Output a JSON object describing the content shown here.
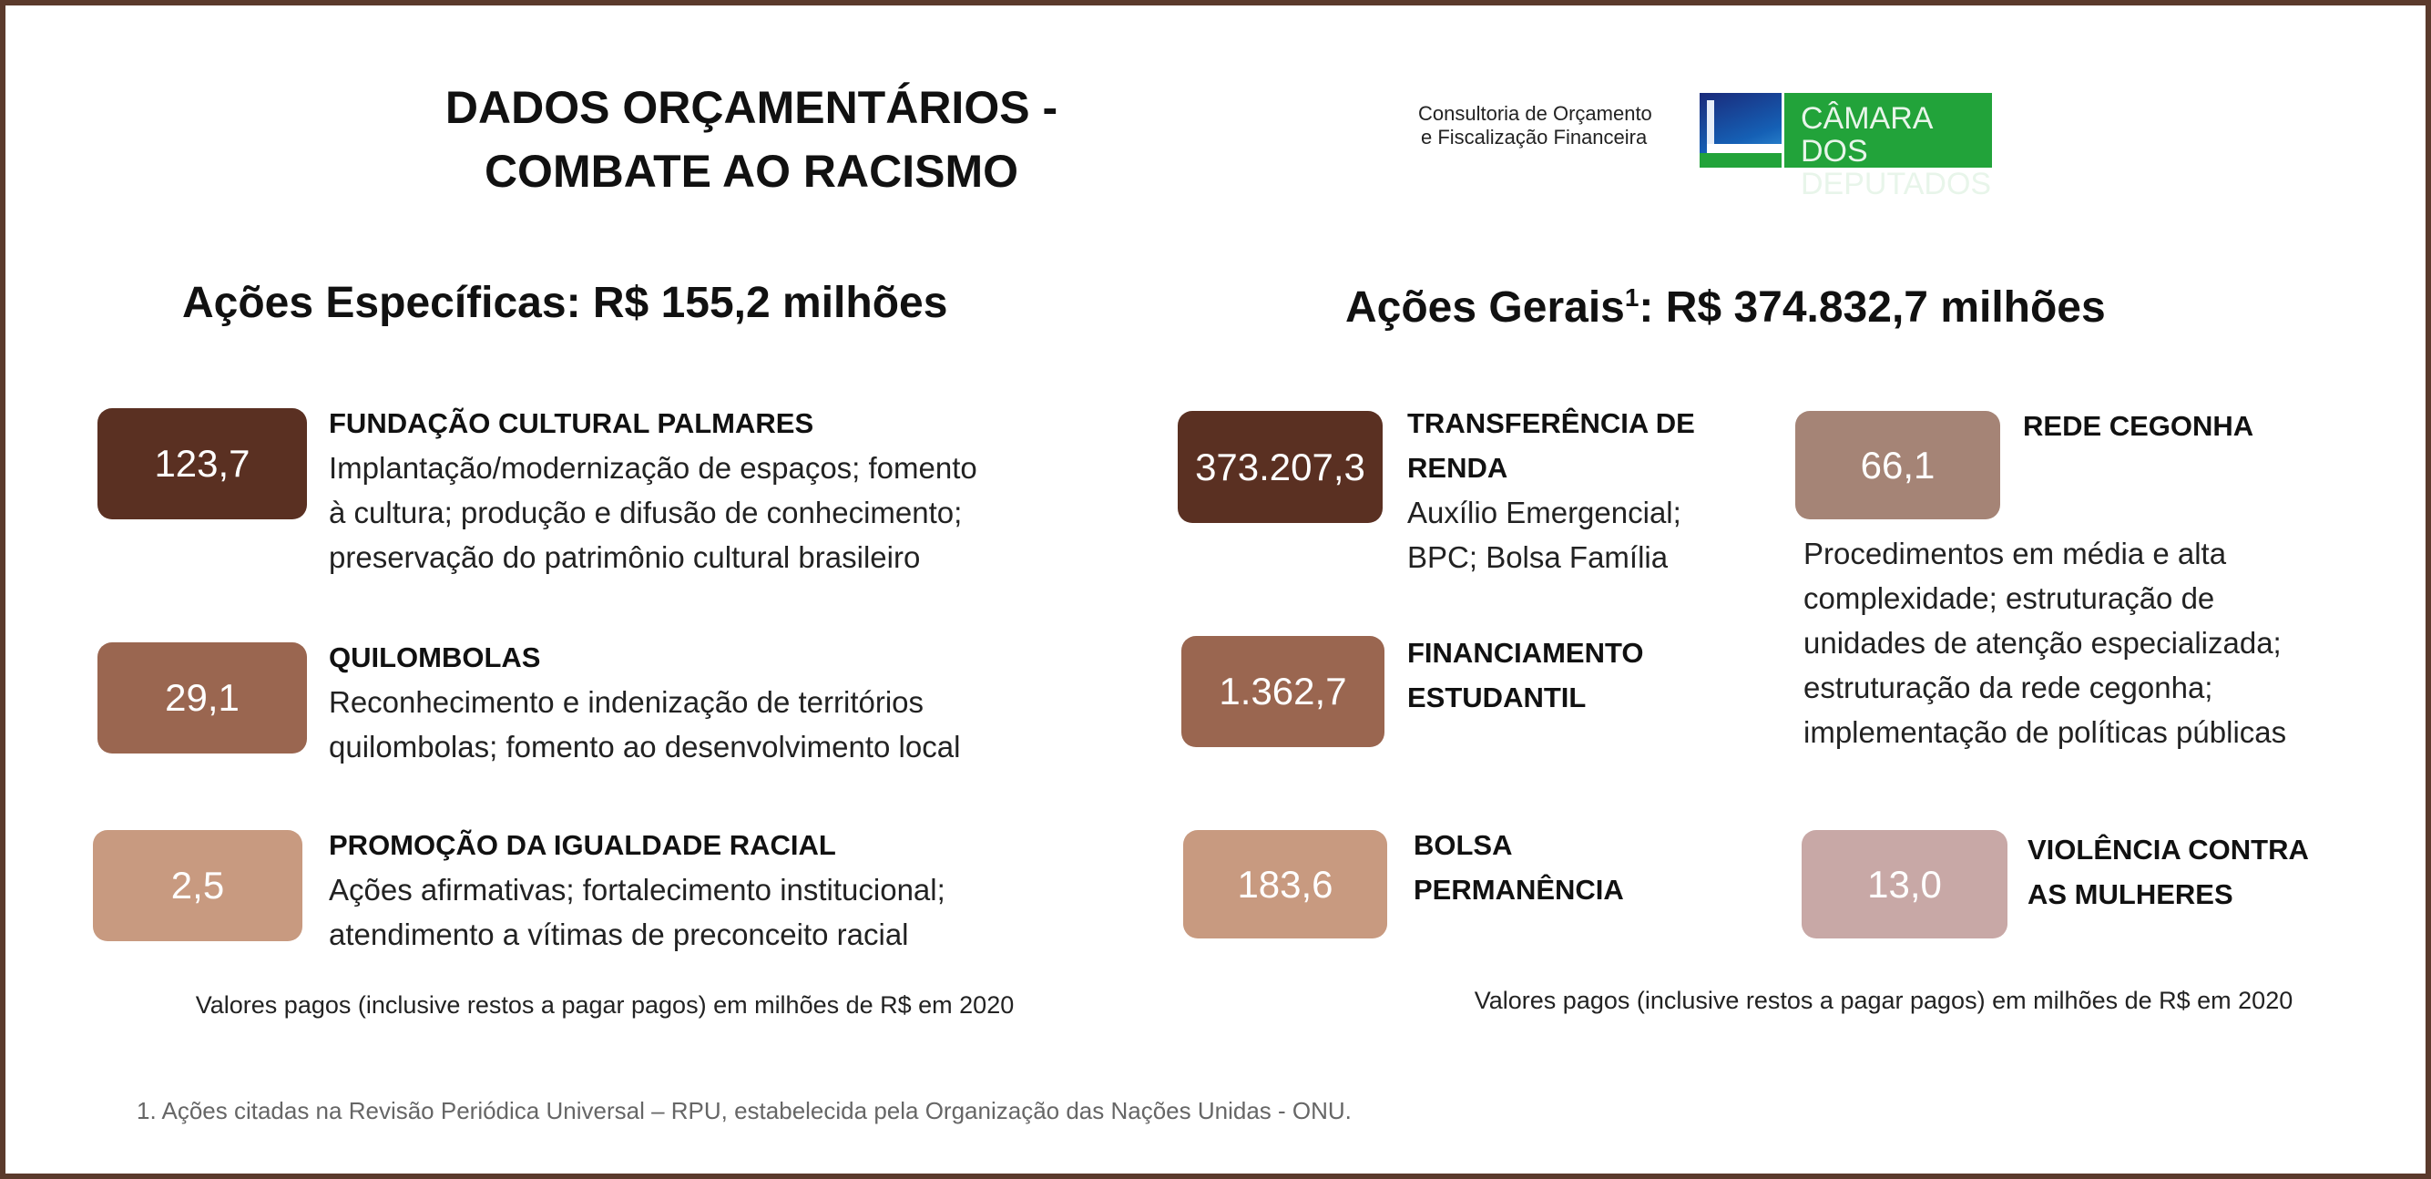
{
  "header": {
    "title_line1": "DADOS ORÇAMENTÁRIOS -",
    "title_line2": "COMBATE AO RACISMO",
    "logo": {
      "text_line1": "Consultoria de Orçamento",
      "text_line2": "e Fiscalização Financeira",
      "brand_line1": "CÂMARA DOS",
      "brand_line2": "DEPUTADOS",
      "brand_color": "#22a33a"
    }
  },
  "left": {
    "heading": "Ações Específicas: R$ 155,2 milhões",
    "items": [
      {
        "value": "123,7",
        "color": "#5a3022",
        "title": [
          "FUNDAÇÃO CULTURAL PALMARES"
        ],
        "body": [
          "Implantação/modernização de espaços; fomento",
          "à cultura; produção e difusão de conhecimento;",
          "preservação do patrimônio cultural brasileiro"
        ]
      },
      {
        "value": "29,1",
        "color": "#9a6650",
        "title": [
          "QUILOMBOLAS"
        ],
        "body": [
          "Reconhecimento e indenização de territórios",
          "quilombolas; fomento ao desenvolvimento local"
        ]
      },
      {
        "value": "2,5",
        "color": "#c89a80",
        "title": [
          "PROMOÇÃO DA IGUALDADE RACIAL"
        ],
        "body": [
          "Ações afirmativas; fortalecimento institucional;",
          "atendimento a vítimas de preconceito racial"
        ]
      }
    ],
    "note": "Valores pagos (inclusive restos a pagar pagos) em milhões de R$ em 2020"
  },
  "right": {
    "heading_prefix": "Ações Gerais",
    "heading_sup": "1",
    "heading_suffix": ": R$ 374.832,7 milhões",
    "items": [
      {
        "value": "373.207,3",
        "color": "#5a3022",
        "title": [
          "TRANSFERÊNCIA DE",
          "RENDA"
        ],
        "body": [
          "Auxílio Emergencial;",
          "BPC; Bolsa Família"
        ]
      },
      {
        "value": "1.362,7",
        "color": "#9a6650",
        "title": [
          "FINANCIAMENTO",
          "ESTUDANTIL"
        ],
        "body": []
      },
      {
        "value": "183,6",
        "color": "#c89a80",
        "title": [
          "BOLSA",
          "PERMANÊNCIA"
        ],
        "body": []
      },
      {
        "value": "66,1",
        "color": "#a58476",
        "title": [
          "REDE CEGONHA"
        ],
        "body": [
          "Procedimentos em média e alta",
          "complexidade; estruturação de",
          "unidades de atenção especializada;",
          "estruturação da rede cegonha;",
          "implementação de políticas públicas"
        ]
      },
      {
        "value": "13,0",
        "color": "#c8a8a6",
        "title": [
          "VIOLÊNCIA CONTRA",
          "AS MULHERES"
        ],
        "body": []
      }
    ],
    "note": "Valores pagos (inclusive restos a pagar pagos) em milhões de R$ em 2020"
  },
  "footnote": "1. Ações citadas na Revisão Periódica Universal – RPU, estabelecida pela Organização das Nações Unidas - ONU."
}
